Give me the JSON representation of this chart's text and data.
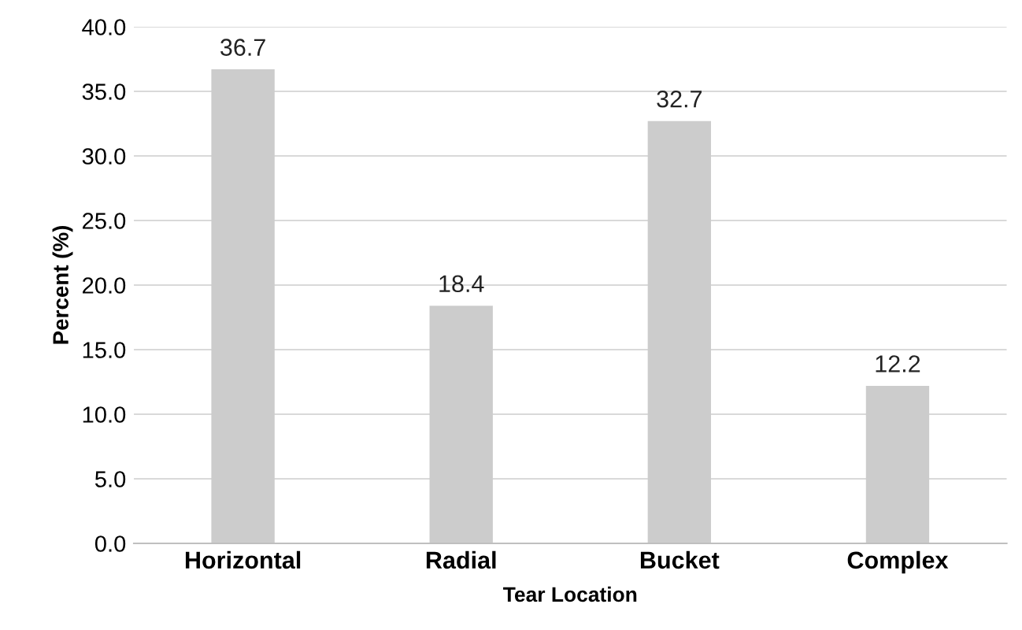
{
  "chart_data": {
    "type": "bar",
    "xlabel": "Tear Location",
    "ylabel": "Percent (%)",
    "categories": [
      "Horizontal",
      "Radial",
      "Bucket",
      "Complex"
    ],
    "values": [
      36.7,
      18.4,
      32.7,
      12.2
    ],
    "color": "#cccccc",
    "data_labels": true,
    "ylim": [
      0,
      40
    ],
    "yticks": [
      {
        "value": 0,
        "label": "0.0"
      },
      {
        "value": 5,
        "label": "5.0"
      },
      {
        "value": 10,
        "label": "10.0"
      },
      {
        "value": 15,
        "label": "15.0"
      },
      {
        "value": 20,
        "label": "20.0"
      },
      {
        "value": 25,
        "label": "25.0"
      },
      {
        "value": 30,
        "label": "30.0"
      },
      {
        "value": 35,
        "label": "35.0"
      },
      {
        "value": 40,
        "label": "40.0"
      }
    ],
    "grid": "y",
    "legend": false
  }
}
